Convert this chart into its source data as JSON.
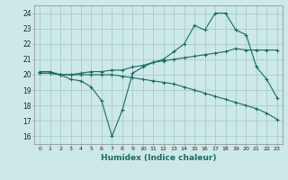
{
  "title": "",
  "xlabel": "Humidex (Indice chaleur)",
  "ylabel": "",
  "bg_color": "#cce8e8",
  "grid_color": "#aacccc",
  "line_color": "#1a6b60",
  "x": [
    0,
    1,
    2,
    3,
    4,
    5,
    6,
    7,
    8,
    9,
    10,
    11,
    12,
    13,
    14,
    15,
    16,
    17,
    18,
    19,
    20,
    21,
    22,
    23
  ],
  "line1": [
    20.2,
    20.2,
    20.0,
    19.7,
    19.6,
    19.2,
    18.3,
    16.0,
    17.7,
    20.1,
    20.5,
    20.8,
    21.0,
    21.5,
    22.0,
    23.2,
    22.9,
    24.0,
    24.0,
    22.9,
    22.6,
    20.5,
    19.7,
    18.5
  ],
  "line2": [
    20.1,
    20.1,
    20.0,
    20.0,
    20.1,
    20.2,
    20.2,
    20.3,
    20.3,
    20.5,
    20.6,
    20.8,
    20.9,
    21.0,
    21.1,
    21.2,
    21.3,
    21.4,
    21.5,
    21.7,
    21.6,
    21.6,
    21.6,
    21.6
  ],
  "line3": [
    20.1,
    20.1,
    20.0,
    20.0,
    20.0,
    20.0,
    20.0,
    20.0,
    19.9,
    19.8,
    19.7,
    19.6,
    19.5,
    19.4,
    19.2,
    19.0,
    18.8,
    18.6,
    18.4,
    18.2,
    18.0,
    17.8,
    17.5,
    17.1
  ],
  "ylim": [
    15.5,
    24.5
  ],
  "yticks": [
    16,
    17,
    18,
    19,
    20,
    21,
    22,
    23,
    24
  ],
  "xticks": [
    0,
    1,
    2,
    3,
    4,
    5,
    6,
    7,
    8,
    9,
    10,
    11,
    12,
    13,
    14,
    15,
    16,
    17,
    18,
    19,
    20,
    21,
    22,
    23
  ]
}
